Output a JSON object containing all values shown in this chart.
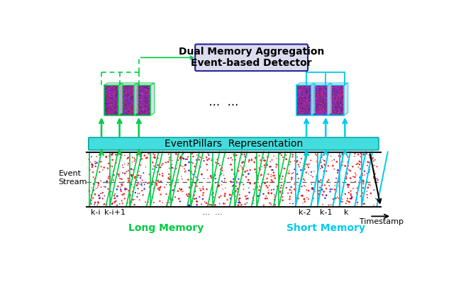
{
  "title": "Dual Memory Aggregation\nEvent-based Detector",
  "eventpillars_label": "EventPillars  Representation",
  "event_stream_label": "Event\nStream",
  "long_memory_label": "Long Memory",
  "short_memory_label": "Short Memory",
  "timestamp_label": "Timestamp",
  "bg_color": "#ffffff",
  "green_color": "#00cc44",
  "cyan_color": "#00ccee",
  "box_facecolor": "#dcdcf0",
  "box_edgecolor": "#222299",
  "ep_facecolor": "#44dddd",
  "ep_edgecolor": "#00aaaa",
  "title_fontsize": 10,
  "label_fontsize": 9,
  "small_fontsize": 8
}
